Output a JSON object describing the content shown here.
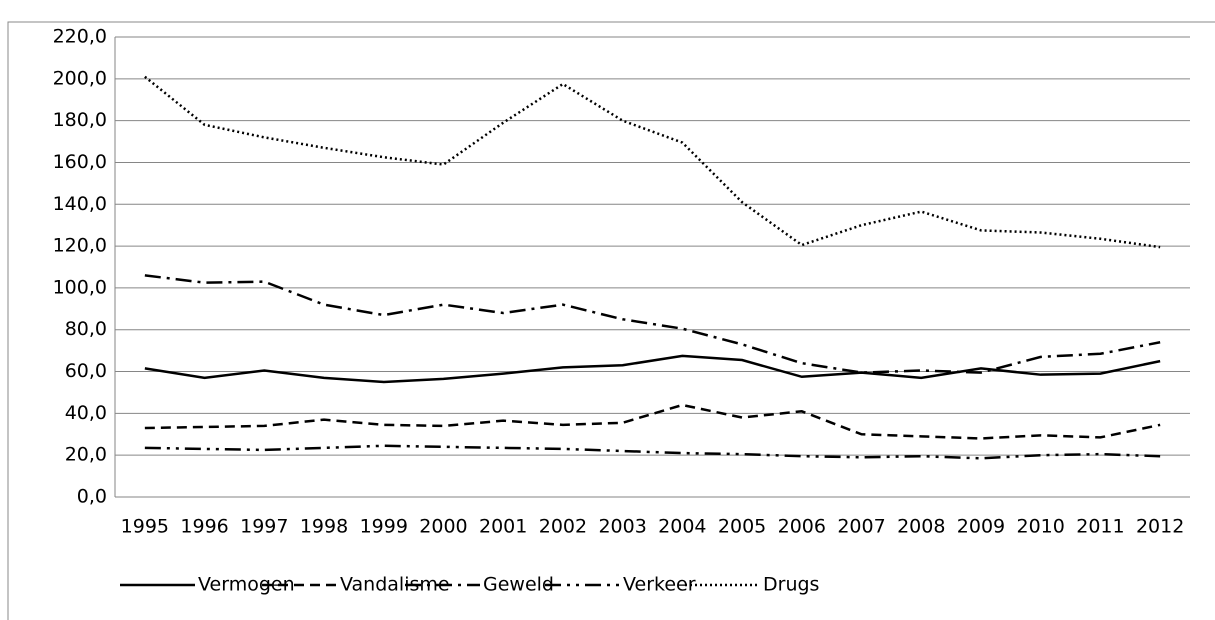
{
  "chart_data": {
    "type": "line",
    "categories": [
      "1995",
      "1996",
      "1997",
      "1998",
      "1999",
      "2000",
      "2001",
      "2002",
      "2003",
      "2004",
      "2005",
      "2006",
      "2007",
      "2008",
      "2009",
      "2010",
      "2011",
      "2012"
    ],
    "series": [
      {
        "name": "Vermogen",
        "color": "#000000",
        "dash": "solid",
        "values": [
          61.5,
          57,
          60.5,
          57,
          55,
          56.5,
          59,
          62,
          63,
          67.5,
          65.5,
          57.5,
          59.5,
          57,
          61.5,
          58.5,
          59,
          65
        ]
      },
      {
        "name": "Vandalisme",
        "color": "#000000",
        "dash": "dashed",
        "values": [
          33,
          33.5,
          34,
          37,
          34.5,
          34,
          36.5,
          34.5,
          35.5,
          44,
          38,
          41,
          30,
          29,
          28,
          29.5,
          28.5,
          34.5
        ]
      },
      {
        "name": "Geweld",
        "color": "#000000",
        "dash": "dash-dot",
        "values": [
          106,
          102.5,
          103,
          92,
          87,
          92,
          88,
          92,
          85,
          80.5,
          73,
          64,
          59.5,
          60.5,
          59.5,
          67,
          68.5,
          74
        ]
      },
      {
        "name": "Verkeer",
        "color": "#000000",
        "dash": "dash-dot-dot",
        "values": [
          23.5,
          23,
          22.5,
          23.5,
          24.5,
          24,
          23.5,
          23,
          22,
          21,
          20.5,
          19.5,
          19,
          19.5,
          18.5,
          20,
          20.5,
          19.5
        ]
      },
      {
        "name": "Drugs",
        "color": "#000000",
        "dash": "dotted",
        "values": [
          201,
          178,
          172,
          167,
          162.5,
          159,
          179,
          197.5,
          180,
          169.5,
          141,
          120.5,
          130,
          136.5,
          127.5,
          126.5,
          123.5,
          119.5
        ]
      }
    ],
    "ylim": [
      0,
      220
    ],
    "yticks": [
      {
        "value": 0,
        "label": "0,0"
      },
      {
        "value": 20,
        "label": "20,0"
      },
      {
        "value": 40,
        "label": "40,0"
      },
      {
        "value": 60,
        "label": "60,0"
      },
      {
        "value": 80,
        "label": "80,0"
      },
      {
        "value": 100,
        "label": "100,0"
      },
      {
        "value": 120,
        "label": "120,0"
      },
      {
        "value": 140,
        "label": "140,0"
      },
      {
        "value": 160,
        "label": "160,0"
      },
      {
        "value": 180,
        "label": "180,0"
      },
      {
        "value": 200,
        "label": "200,0"
      },
      {
        "value": 220,
        "label": "220,0"
      }
    ],
    "grid": true,
    "legend": "bottom"
  }
}
